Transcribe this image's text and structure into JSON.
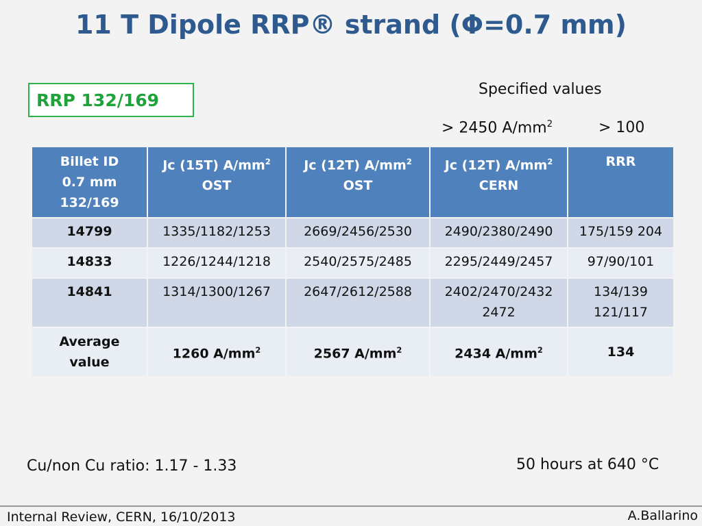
{
  "slide": {
    "title": "11 T Dipole RRP® strand (Φ=0.7 mm)",
    "label": "RRP 132/169"
  },
  "specified": {
    "title": "Specified values",
    "jc_prefix": "> 2450 A/mm",
    "jc_sup": "2",
    "rrr": "> 100"
  },
  "table": {
    "headers": {
      "c1": {
        "l1": "Billet ID",
        "l2": "0.7 mm",
        "l3": "132/169"
      },
      "c2": {
        "l1": "Jc (15T) A/mm",
        "sup": "2",
        "l2": "OST"
      },
      "c3": {
        "l1": "Jc (12T) A/mm",
        "sup": "2",
        "l2": "OST"
      },
      "c4": {
        "l1": "Jc (12T) A/mm",
        "sup": "2",
        "l2": "CERN"
      },
      "c5": {
        "l1": "RRR"
      }
    },
    "rows": [
      {
        "id": "14799",
        "jc15": "1335/1182/1253",
        "jc12ost": "2669/2456/2530",
        "jc12cern": "2490/2380/2490",
        "rrr": "175/159 204"
      },
      {
        "id": "14833",
        "jc15": "1226/1244/1218",
        "jc12ost": "2540/2575/2485",
        "jc12cern": "2295/2449/2457",
        "rrr": "97/90/101"
      },
      {
        "id": "14841",
        "jc15": "1314/1300/1267",
        "jc12ost": "2647/2612/2588",
        "jc12cern_l1": "2402/2470/2432",
        "jc12cern_l2": "2472",
        "rrr_l1": "134/139",
        "rrr_l2": "121/117"
      }
    ],
    "average": {
      "label_l1": "Average",
      "label_l2": "value",
      "jc15": "1260 A/mm",
      "jc12ost": "2567 A/mm",
      "jc12cern": "2434 A/mm",
      "sup": "2",
      "rrr": "134"
    }
  },
  "notes": {
    "cu_ratio": "Cu/non Cu ratio: 1.17 - 1.33",
    "heat_treatment": "50 hours at 640 °C"
  },
  "footer": {
    "left": "Internal Review, CERN, 16/10/2013",
    "right": "A.Ballarino"
  }
}
